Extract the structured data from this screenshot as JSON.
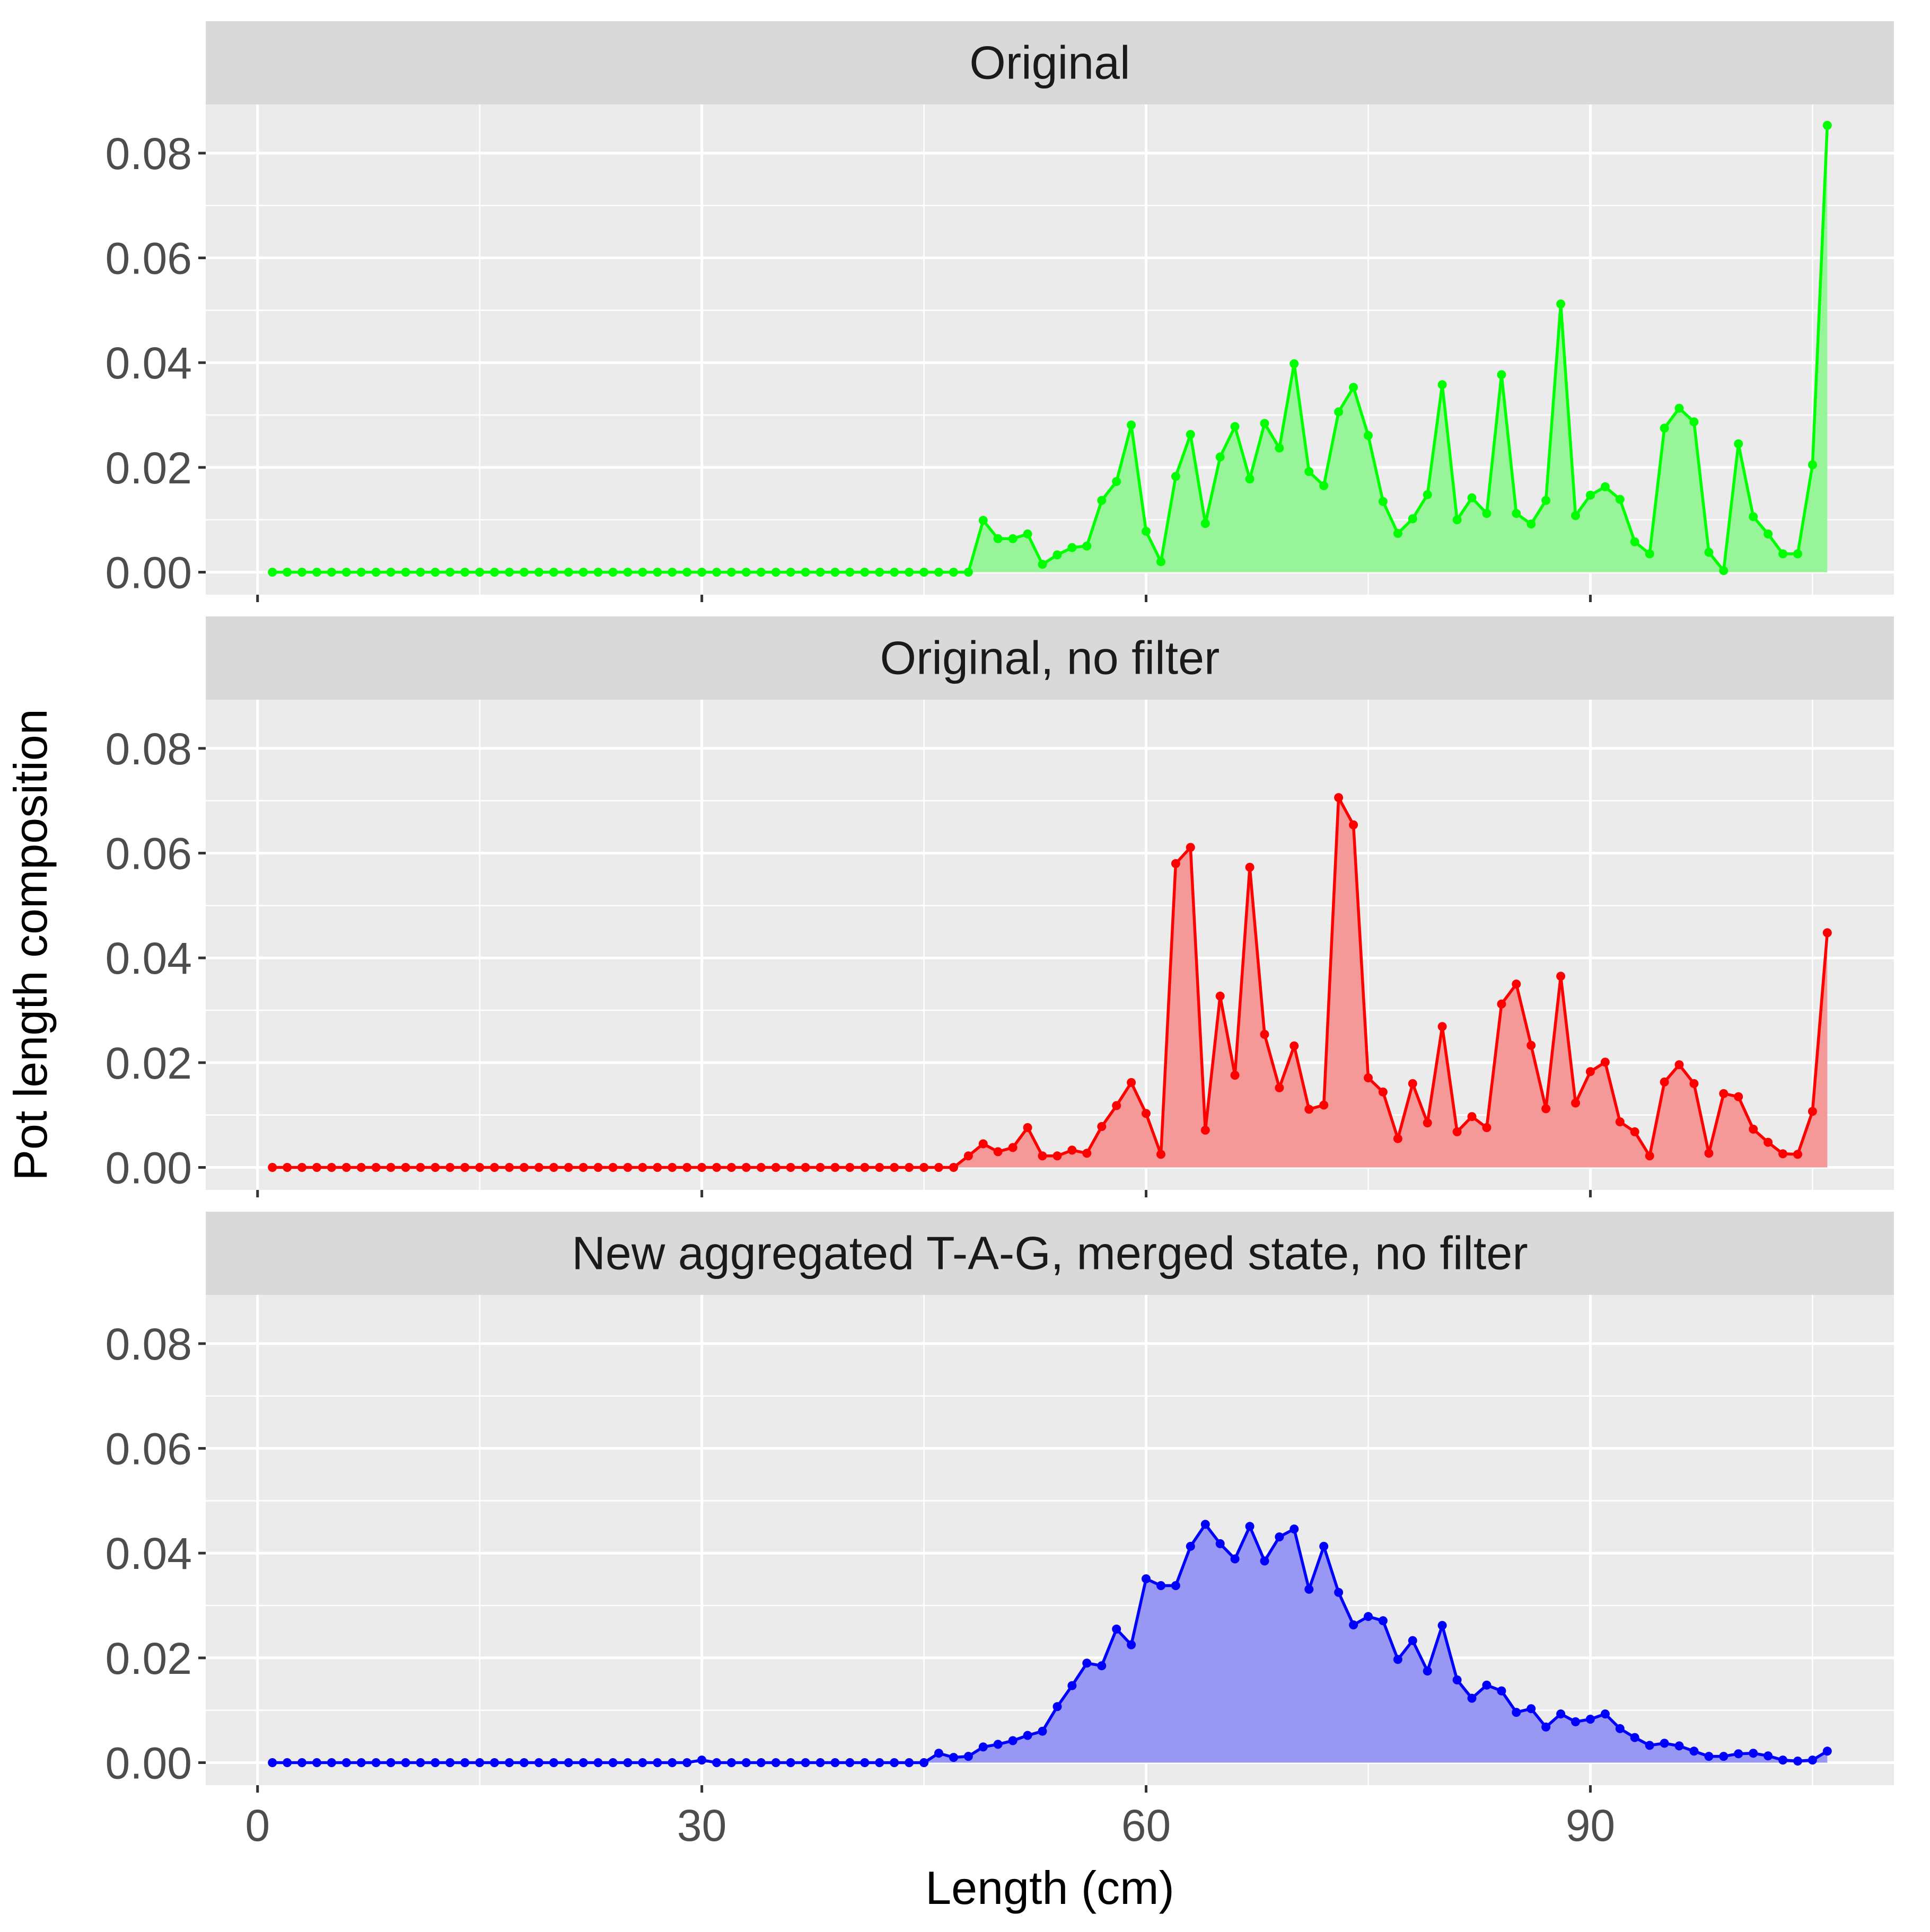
{
  "chart_data": {
    "type": "area",
    "xlabel": "Length (cm)",
    "ylabel": "Pot length composition",
    "xlim": [
      -3.5,
      110.5
    ],
    "ylim": [
      -0.0043,
      0.0893
    ],
    "x_ticks": [
      0,
      30,
      60,
      90
    ],
    "x_tick_labels": [
      "0",
      "30",
      "60",
      "90"
    ],
    "y_ticks": [
      0,
      0.02,
      0.04,
      0.06,
      0.08
    ],
    "y_tick_labels": [
      "0.00",
      "0.02",
      "0.04",
      "0.06",
      "0.08"
    ],
    "grid": true,
    "legend": "none",
    "x": [
      1,
      2,
      3,
      4,
      5,
      6,
      7,
      8,
      9,
      10,
      11,
      12,
      13,
      14,
      15,
      16,
      17,
      18,
      19,
      20,
      21,
      22,
      23,
      24,
      25,
      26,
      27,
      28,
      29,
      30,
      31,
      32,
      33,
      34,
      35,
      36,
      37,
      38,
      39,
      40,
      41,
      42,
      43,
      44,
      45,
      46,
      47,
      48,
      49,
      50,
      51,
      52,
      53,
      54,
      55,
      56,
      57,
      58,
      59,
      60,
      61,
      62,
      63,
      64,
      65,
      66,
      67,
      68,
      69,
      70,
      71,
      72,
      73,
      74,
      75,
      76,
      77,
      78,
      79,
      80,
      81,
      82,
      83,
      84,
      85,
      86,
      87,
      88,
      89,
      90,
      91,
      92,
      93,
      94,
      95,
      96,
      97,
      98,
      99,
      100,
      101,
      102,
      103,
      104,
      105,
      106
    ],
    "panels": [
      {
        "strip": "Original",
        "color": "#00ff00",
        "fill": "#98f498",
        "values": [
          0,
          0,
          0,
          0,
          0,
          0,
          0,
          0,
          0,
          0,
          0,
          0,
          0,
          0,
          0,
          0,
          0,
          0,
          0,
          0,
          0,
          0,
          0,
          0,
          0,
          0,
          0,
          0,
          0,
          0,
          0,
          0,
          0,
          0,
          0,
          0,
          0,
          0,
          0,
          0,
          0,
          0,
          0,
          0,
          0,
          0,
          0,
          0,
          0.0099,
          0.0064,
          0.0064,
          0.0073,
          0.0015,
          0.0033,
          0.0047,
          0.005,
          0.0137,
          0.0173,
          0.0281,
          0.0078,
          0.002,
          0.0183,
          0.0263,
          0.0093,
          0.022,
          0.0278,
          0.0178,
          0.0284,
          0.0237,
          0.0398,
          0.0192,
          0.0165,
          0.0306,
          0.0353,
          0.0261,
          0.0135,
          0.0074,
          0.0102,
          0.0148,
          0.0358,
          0.01,
          0.0142,
          0.0112,
          0.0377,
          0.0112,
          0.0092,
          0.0137,
          0.0512,
          0.0108,
          0.0147,
          0.0163,
          0.0139,
          0.0058,
          0.0035,
          0.0275,
          0.0313,
          0.0287,
          0.0038,
          0.0003,
          0.0245,
          0.0106,
          0.0073,
          0.0035,
          0.0035,
          0.0205,
          0.0853
        ]
      },
      {
        "strip": "Original, no filter",
        "color": "#ff0000",
        "fill": "#f49898",
        "values": [
          0,
          0,
          0,
          0,
          0,
          0,
          0,
          0,
          0,
          0,
          0,
          0,
          0,
          0,
          0,
          0,
          0,
          0,
          0,
          0,
          0,
          0,
          0,
          0,
          0,
          0,
          0,
          0,
          0,
          0,
          0,
          0,
          0,
          0,
          0,
          0,
          0,
          0,
          0,
          0,
          0,
          0,
          0,
          0,
          0,
          0,
          0,
          0.0022,
          0.0045,
          0.003,
          0.0038,
          0.0076,
          0.0022,
          0.0022,
          0.0033,
          0.0027,
          0.0078,
          0.0118,
          0.0162,
          0.0103,
          0.0025,
          0.058,
          0.0611,
          0.0071,
          0.0327,
          0.0176,
          0.0573,
          0.0254,
          0.0152,
          0.0232,
          0.0111,
          0.0119,
          0.0706,
          0.0654,
          0.0171,
          0.0144,
          0.0055,
          0.016,
          0.0085,
          0.0269,
          0.0068,
          0.0097,
          0.0076,
          0.0312,
          0.035,
          0.0233,
          0.0112,
          0.0365,
          0.0123,
          0.0183,
          0.0201,
          0.0087,
          0.0068,
          0.0022,
          0.0163,
          0.0196,
          0.016,
          0.0027,
          0.0141,
          0.0135,
          0.0073,
          0.0048,
          0.0026,
          0.0025,
          0.0107,
          0.0448
        ]
      },
      {
        "strip": "New aggregated T-A-G, merged state, no filter",
        "color": "#0000ff",
        "fill": "#9898f4",
        "values": [
          0,
          0,
          0,
          0,
          0,
          0,
          0,
          0,
          0,
          0,
          0,
          0,
          0,
          0,
          0,
          0,
          0,
          0,
          0,
          0,
          0,
          0,
          0,
          0,
          0,
          0,
          0,
          0,
          0,
          0.0005,
          0,
          0,
          0,
          0,
          0,
          0,
          0,
          0,
          0,
          0,
          0,
          0,
          0,
          0,
          0,
          0.0018,
          0.001,
          0.0012,
          0.003,
          0.0035,
          0.0042,
          0.0052,
          0.006,
          0.0107,
          0.0147,
          0.019,
          0.0185,
          0.0255,
          0.0225,
          0.0351,
          0.0338,
          0.0338,
          0.0413,
          0.0455,
          0.0418,
          0.0389,
          0.0451,
          0.0385,
          0.0431,
          0.0446,
          0.0331,
          0.0413,
          0.0325,
          0.0263,
          0.0279,
          0.0271,
          0.0197,
          0.0233,
          0.0175,
          0.0262,
          0.0158,
          0.0123,
          0.0148,
          0.0137,
          0.0096,
          0.0103,
          0.0068,
          0.0093,
          0.0078,
          0.0083,
          0.0093,
          0.0065,
          0.0048,
          0.0033,
          0.0037,
          0.0032,
          0.0022,
          0.0012,
          0.0012,
          0.0017,
          0.0018,
          0.0013,
          0.0005,
          0.0003,
          0.0005,
          0.0022
        ]
      }
    ]
  }
}
